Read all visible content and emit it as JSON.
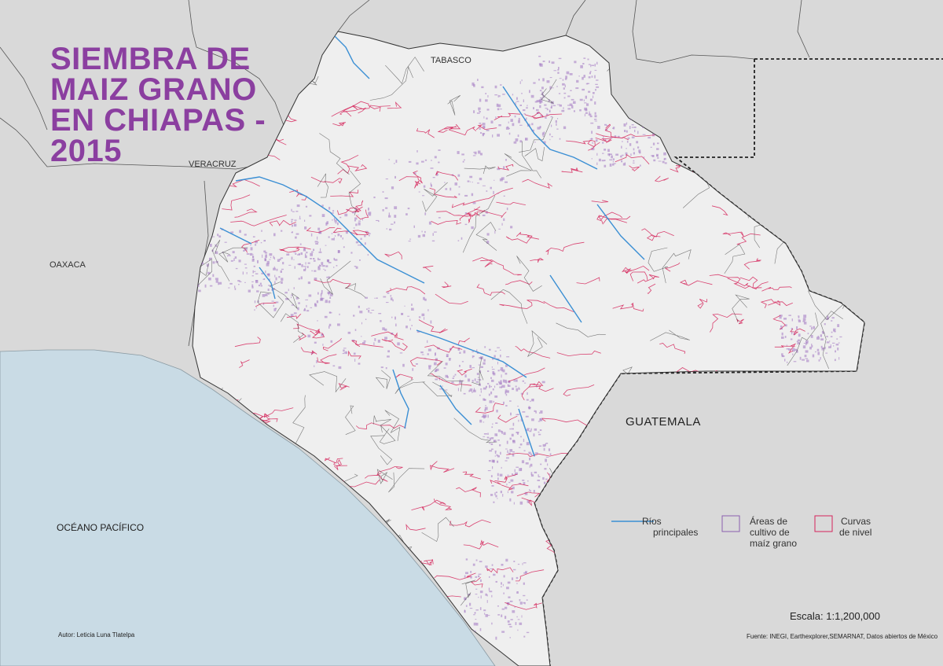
{
  "title": {
    "line1": "SIEMBRA DE",
    "line2": "MAIZ GRANO",
    "line3": "EN CHIAPAS -",
    "line4": "2015"
  },
  "region_labels": {
    "tabasco": "TABASCO",
    "veracruz": "VERACRUZ",
    "oaxaca": "OAXACA",
    "guatemala": "GUATEMALA",
    "ocean": "OCÉANO PACÍFICO"
  },
  "legend": {
    "rivers": "Ríos principales",
    "rivers_line1": "Ríos",
    "rivers_line2": "principales",
    "corn_line1": "Áreas de",
    "corn_line2": "cultivo de",
    "corn_line3": "maíz grano",
    "contours_line1": "Curvas",
    "contours_line2": "de nivel"
  },
  "scale": "Escala: 1:1,200,000",
  "source": "Fuente: INEGI, Earthexplorer,SEMARNAT, Datos abiertos de México",
  "author": "Autor: Leticia Luna Tlatelpa",
  "colors": {
    "background_land": "#d9d9d9",
    "ocean": "#c9dbe5",
    "state_fill": "#efefef",
    "title": "#8b3fa0",
    "rivers": "#3b8fd4",
    "corn_areas": "#a77fc4",
    "contours": "#d5245a",
    "municipal_borders": "#444444"
  }
}
